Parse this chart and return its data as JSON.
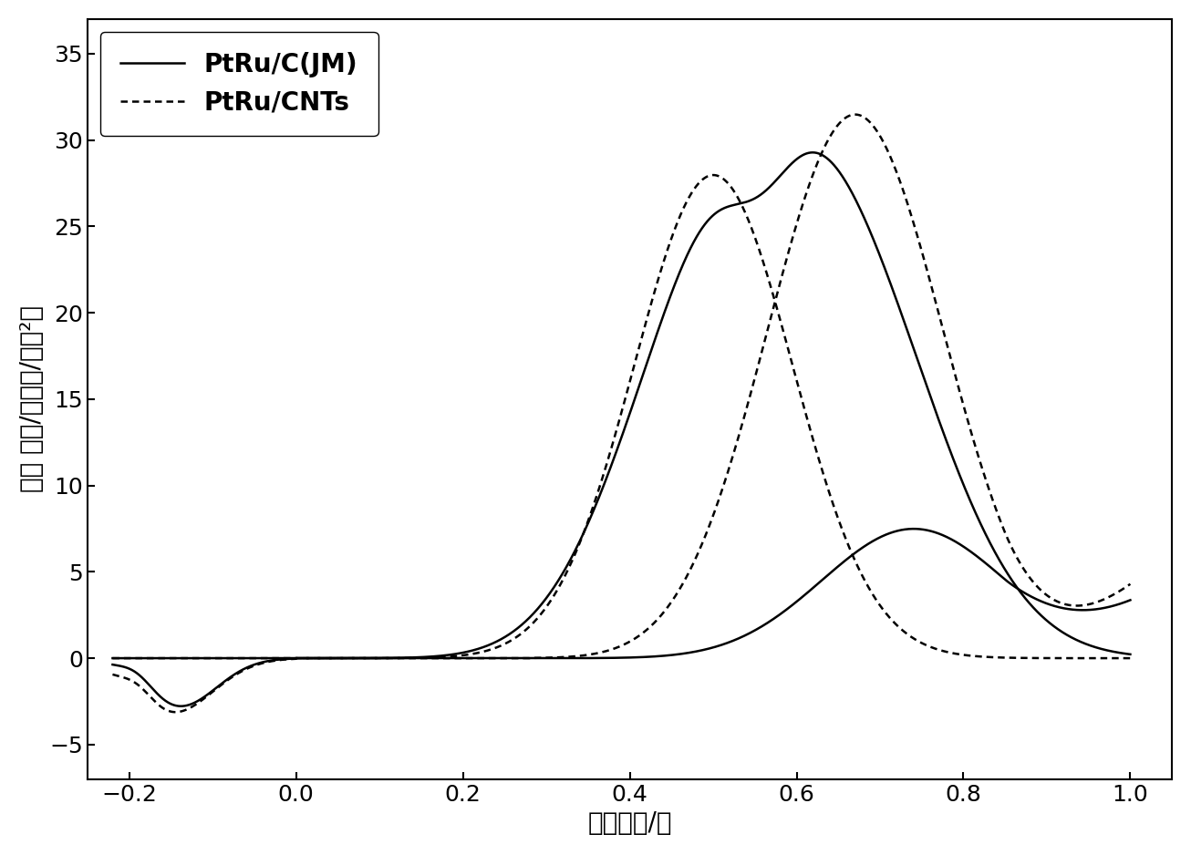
{
  "xlabel": "电极电势/伏",
  "ylabel": "电流 密度/（毫安/厘米²）",
  "xlim": [
    -0.25,
    1.05
  ],
  "ylim": [
    -7,
    37
  ],
  "xticks": [
    -0.2,
    0.0,
    0.2,
    0.4,
    0.6,
    0.8,
    1.0
  ],
  "yticks": [
    -5,
    0,
    5,
    10,
    15,
    20,
    25,
    30,
    35
  ],
  "legend_solid": "PtRu/C(JM)",
  "legend_dotted": "PtRu/CNTs",
  "background_color": "#ffffff",
  "line_color": "#000000",
  "figsize": [
    13.06,
    9.38
  ],
  "dpi": 100
}
